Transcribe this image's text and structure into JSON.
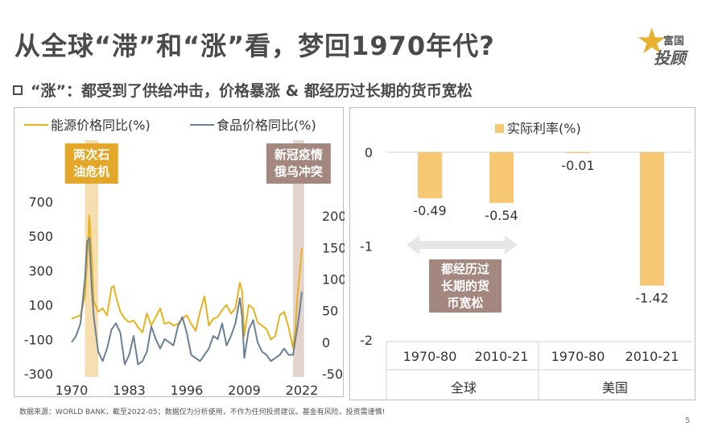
{
  "title": "从全球“滞”和“涨”看，梦回1970年代?",
  "subtitle": "“涨”：都受到了供给冲击，价格暴涨 & 都经历过长期的货币宽松",
  "logo": {
    "top": "富国",
    "main": "投顾",
    "icon": "star-icon"
  },
  "footnote": "数据来源：WORLD BANK，截至2022-05；数据仅为分析使用，不作为任何投资建议。基金有风险，投资需谨慎!",
  "page_number": "5",
  "colors": {
    "energy": "#e8b21e",
    "food": "#6b7f96",
    "shade1": "#f5deb0",
    "shade2": "#e2d3cd",
    "bar": "#f6c873",
    "label1": "#e3a82a",
    "label2": "#a4887f",
    "arrow": "#e6e6e6"
  },
  "chart_data": [
    {
      "type": "line",
      "series": [
        {
          "name": "能源价格同比(%)",
          "axis": "left",
          "x": [
            1970,
            1971,
            1972,
            1973,
            1973.5,
            1974,
            1974.5,
            1975,
            1976,
            1977,
            1978,
            1979,
            1979.5,
            1980,
            1981,
            1982,
            1983,
            1984,
            1985,
            1986,
            1987,
            1988,
            1989,
            1990,
            1991,
            1992,
            1993,
            1994,
            1995,
            1996,
            1997,
            1998,
            1999,
            2000,
            2001,
            2002,
            2003,
            2004,
            2005,
            2006,
            2007,
            2008,
            2008.5,
            2009,
            2010,
            2011,
            2012,
            2013,
            2014,
            2015,
            2016,
            2017,
            2018,
            2019,
            2020,
            2020.5,
            2021,
            2021.5,
            2022
          ],
          "values": [
            20,
            30,
            40,
            150,
            350,
            620,
            400,
            120,
            60,
            80,
            40,
            200,
            210,
            150,
            60,
            20,
            0,
            10,
            -30,
            -60,
            50,
            -20,
            30,
            80,
            -10,
            0,
            -20,
            -10,
            20,
            40,
            -10,
            -50,
            60,
            150,
            -20,
            20,
            30,
            70,
            100,
            50,
            80,
            230,
            180,
            -80,
            100,
            80,
            0,
            -20,
            -40,
            -100,
            -80,
            40,
            60,
            -30,
            -150,
            -50,
            150,
            280,
            430
          ]
        },
        {
          "name": "食品价格同比(%)",
          "axis": "right",
          "x": [
            1970,
            1971,
            1972,
            1973,
            1973.5,
            1974,
            1974.5,
            1975,
            1976,
            1977,
            1978,
            1979,
            1980,
            1981,
            1982,
            1983,
            1984,
            1985,
            1986,
            1987,
            1988,
            1989,
            1990,
            1991,
            1992,
            1993,
            1994,
            1995,
            1996,
            1997,
            1998,
            1999,
            2000,
            2001,
            2002,
            2003,
            2004,
            2005,
            2006,
            2007,
            2008,
            2008.5,
            2009,
            2010,
            2011,
            2012,
            2013,
            2014,
            2015,
            2016,
            2017,
            2018,
            2019,
            2020,
            2021,
            2021.5,
            2022
          ],
          "values": [
            0,
            10,
            30,
            100,
            160,
            165,
            90,
            40,
            -15,
            -30,
            -10,
            20,
            30,
            15,
            -35,
            -20,
            10,
            -35,
            -30,
            -15,
            25,
            5,
            -10,
            5,
            0,
            -5,
            25,
            40,
            15,
            -20,
            -25,
            -30,
            -20,
            -10,
            10,
            5,
            30,
            -5,
            10,
            30,
            70,
            40,
            -25,
            20,
            35,
            0,
            -15,
            -20,
            -30,
            -25,
            -20,
            -10,
            -20,
            -20,
            25,
            50,
            80
          ]
        }
      ],
      "xlim": [
        1968,
        2024
      ],
      "xticks": [
        "1970",
        "1983",
        "1996",
        "2009",
        "2022"
      ],
      "ylim_left": [
        -300,
        800
      ],
      "yticks_left": [
        "-300",
        "-100",
        "100",
        "300",
        "500",
        "700"
      ],
      "ylim_right": [
        -50,
        250
      ],
      "yticks_right": [
        "-50",
        "0",
        "50",
        "100",
        "150",
        "200"
      ],
      "annotations": [
        {
          "text_lines": [
            "两次石",
            "油危机"
          ],
          "x_range": [
            1973,
            1976
          ]
        },
        {
          "text_lines": [
            "新冠疫情",
            "俄乌冲突"
          ],
          "x_range": [
            2020,
            2022.5
          ]
        }
      ],
      "legend": "top"
    },
    {
      "type": "bar",
      "legend_label": "实际利率(%)",
      "groups": [
        "全球",
        "美国"
      ],
      "categories": [
        "1970-80",
        "2010-21",
        "1970-80",
        "2010-21"
      ],
      "values": [
        -0.49,
        -0.54,
        -0.01,
        -1.42
      ],
      "value_labels": [
        "-0.49",
        "-0.54",
        "-0.01",
        "-1.42"
      ],
      "ylim": [
        -2.1,
        0.1
      ],
      "yticks": [
        "0",
        "-1",
        "-2"
      ],
      "annotation_lines": [
        "都经历过",
        "长期的货",
        "币宽松"
      ]
    }
  ]
}
